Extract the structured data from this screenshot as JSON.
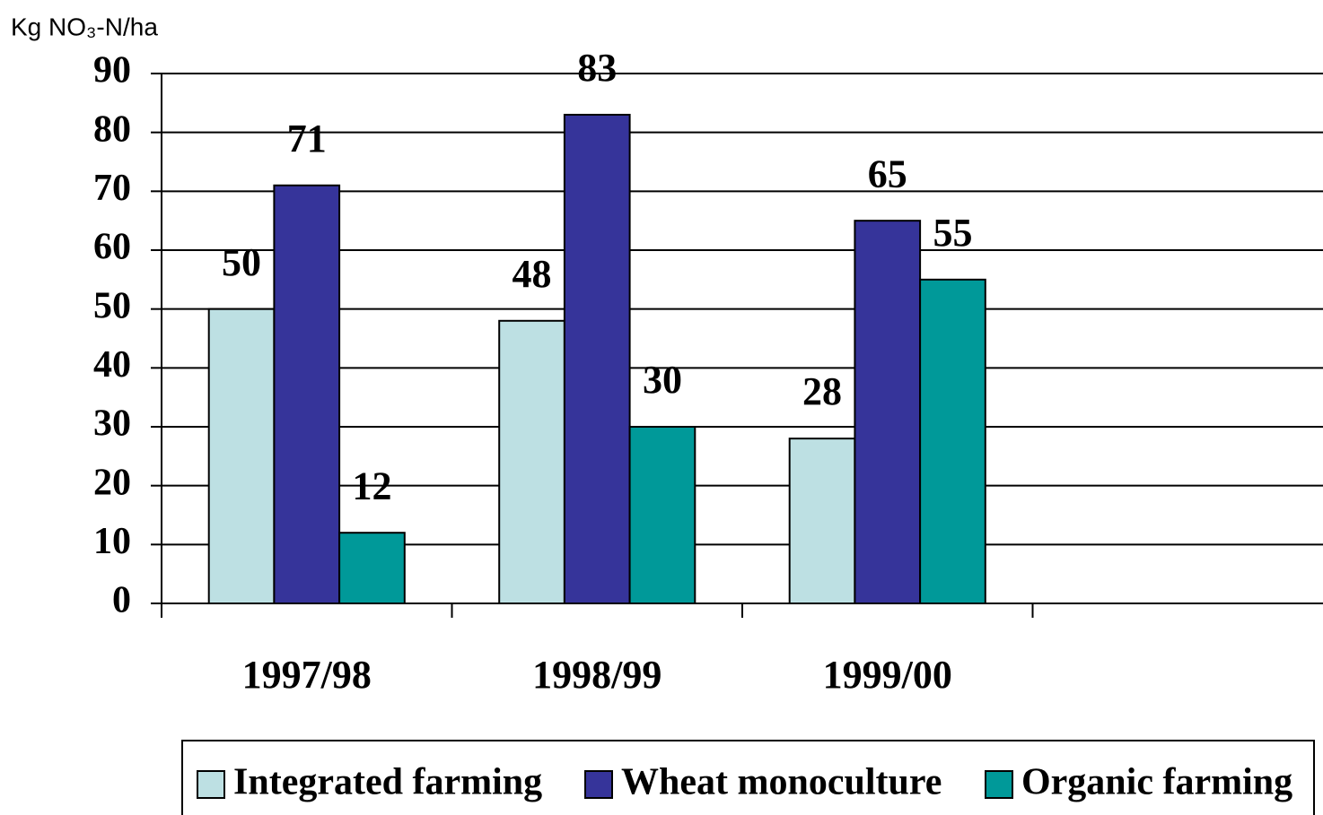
{
  "chart_data": {
    "type": "bar",
    "y_axis_label": "Kg NO₃-N/ha",
    "categories": [
      "1997/98",
      "1998/99",
      "1999/00",
      null
    ],
    "series": [
      {
        "name": "Integrated farming",
        "color": "#bde0e3",
        "values": [
          50,
          48,
          28,
          null
        ]
      },
      {
        "name": "Wheat monoculture",
        "color": "#36349a",
        "values": [
          71,
          83,
          65,
          null
        ]
      },
      {
        "name": "Organic farming",
        "color": "#009999",
        "values": [
          12,
          30,
          55,
          null
        ]
      }
    ],
    "ylim": [
      0,
      90
    ],
    "yticks": [
      0,
      10,
      20,
      30,
      40,
      50,
      60,
      70,
      80,
      90
    ],
    "grid": true,
    "legend": "bottom",
    "data_labels": true
  }
}
